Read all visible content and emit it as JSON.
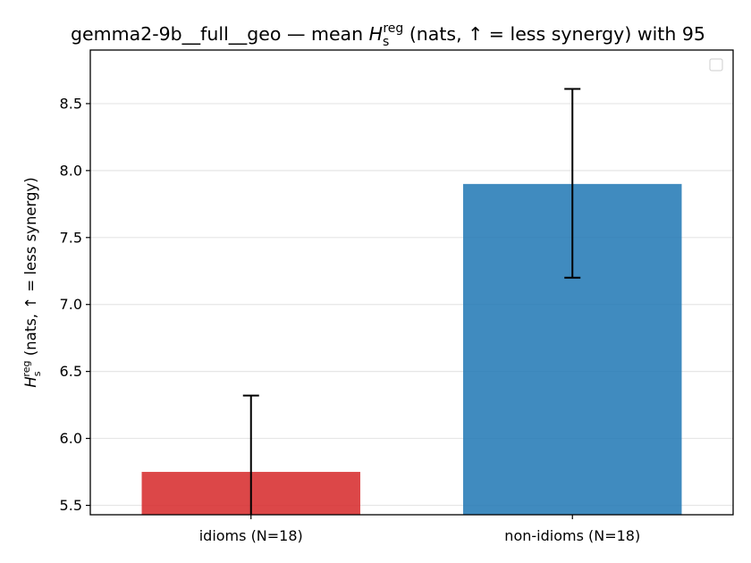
{
  "chart_data": {
    "type": "bar",
    "title_parts": {
      "prefix": "gemma2-9b__full__geo — mean ",
      "symbol": "H",
      "subscript": "s",
      "superscript": "reg",
      "suffix": " (nats, ↑ = less synergy) with 95"
    },
    "ylabel_parts": {
      "symbol": "H",
      "subscript": "s",
      "superscript": "reg",
      "suffix": " (nats, ↑ = less synergy)"
    },
    "xlabel": "",
    "categories": [
      "idioms (N=18)",
      "non-idioms (N=18)"
    ],
    "values": [
      5.75,
      7.9
    ],
    "ci_low": [
      5.42,
      7.2
    ],
    "ci_high": [
      6.32,
      8.61
    ],
    "colors": [
      "#d62728",
      "#1f77b4"
    ],
    "ylim": [
      5.43,
      8.9
    ],
    "yticks": [
      5.5,
      6.0,
      6.5,
      7.0,
      7.5,
      8.0,
      8.5
    ],
    "ytick_labels": [
      "5.5",
      "6.0",
      "6.5",
      "7.0",
      "7.5",
      "8.0",
      "8.5"
    ],
    "grid": "horizontal",
    "legend": "top-right (empty)"
  }
}
